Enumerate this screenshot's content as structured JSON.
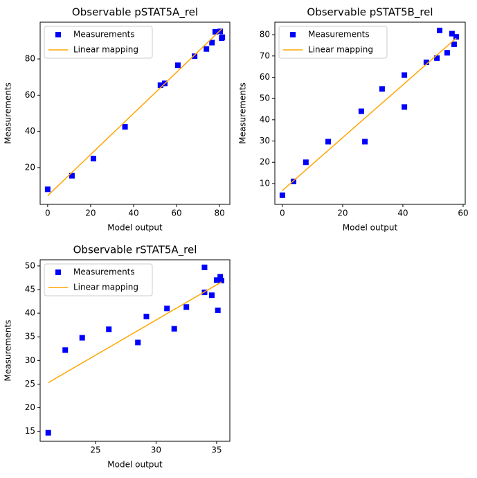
{
  "chart_data": [
    {
      "type": "scatter",
      "title": "Observable pSTAT5A_rel",
      "xlabel": "Model output",
      "ylabel": "Measurements",
      "xlim": [
        -3.5,
        84.8
      ],
      "ylim": [
        -0.3,
        100.3
      ],
      "xticks": [
        0,
        20,
        40,
        60,
        80
      ],
      "yticks": [
        20,
        40,
        60,
        80
      ],
      "legend": "upper left",
      "series": [
        {
          "name": "Measurements",
          "type": "scatter",
          "marker": "square",
          "color": "#0000ff",
          "x": [
            0,
            11.3,
            21.3,
            36,
            52.5,
            54.5,
            60.6,
            68.4,
            73.9,
            76.5,
            78,
            80.3,
            81,
            81.3
          ],
          "values": [
            8,
            15.5,
            25,
            42.5,
            65.5,
            66.5,
            76.5,
            81.5,
            85.5,
            89,
            95,
            95.2,
            91.5,
            92
          ]
        },
        {
          "name": "Linear mapping",
          "type": "line",
          "color": "#ffa500",
          "x": [
            0,
            81
          ],
          "values": [
            4.5,
            96.5
          ]
        }
      ]
    },
    {
      "type": "scatter",
      "title": "Observable pSTAT5B_rel",
      "xlabel": "Model output",
      "ylabel": "Measurements",
      "xlim": [
        -2.5,
        60.7
      ],
      "ylim": [
        0.2,
        85.9
      ],
      "xticks": [
        0,
        20,
        40,
        60
      ],
      "yticks": [
        10,
        20,
        30,
        40,
        50,
        60,
        70,
        80
      ],
      "legend": "upper left",
      "series": [
        {
          "name": "Measurements",
          "type": "scatter",
          "marker": "square",
          "color": "#0000ff",
          "x": [
            0,
            3.7,
            7.8,
            15.2,
            26.2,
            27.4,
            33.1,
            40.5,
            40.5,
            47.8,
            51.3,
            52.2,
            54.7,
            56.3,
            57,
            57.7
          ],
          "values": [
            4.5,
            11,
            20,
            29.7,
            44,
            29.7,
            54.5,
            61,
            46,
            67,
            69,
            82,
            71.5,
            80.5,
            75.5,
            79
          ]
        },
        {
          "name": "Linear mapping",
          "type": "line",
          "color": "#ffa500",
          "x": [
            0,
            57.7
          ],
          "values": [
            6.7,
            78.4
          ]
        }
      ]
    },
    {
      "type": "scatter",
      "title": "Observable rSTAT5A_rel",
      "xlabel": "Model output",
      "ylabel": "Measurements",
      "xlim": [
        20.43,
        36.09
      ],
      "ylim": [
        12.9,
        51.3
      ],
      "xticks": [
        25,
        30,
        35
      ],
      "yticks": [
        15,
        20,
        25,
        30,
        35,
        40,
        45,
        50
      ],
      "legend": "upper left",
      "series": [
        {
          "name": "Measurements",
          "type": "scatter",
          "marker": "square",
          "color": "#0000ff",
          "x": [
            21.1,
            22.5,
            23.9,
            26.1,
            28.5,
            29.2,
            30.9,
            31.5,
            32.5,
            34,
            34,
            34.6,
            35,
            35.1,
            35.3,
            35.4
          ],
          "values": [
            14.7,
            32.2,
            34.8,
            36.6,
            33.8,
            39.3,
            41,
            36.7,
            41.3,
            49.7,
            44.4,
            43.8,
            47,
            40.6,
            47.7,
            46.9
          ]
        },
        {
          "name": "Linear mapping",
          "type": "line",
          "color": "#ffa500",
          "x": [
            21.1,
            35.4
          ],
          "values": [
            25.3,
            46.6
          ]
        }
      ]
    }
  ]
}
